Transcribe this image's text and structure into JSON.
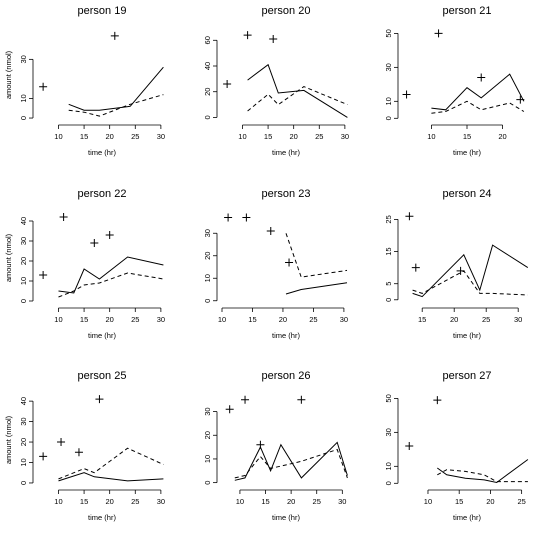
{
  "chart_data": [
    {
      "type": "line",
      "title": "person 19",
      "xlabel": "time (hr)",
      "ylabel": "amount (nmol)",
      "xticks": [
        10,
        15,
        20,
        25,
        30
      ],
      "yticks": [
        0,
        10,
        30
      ],
      "xlim": [
        6,
        31
      ],
      "ylim": [
        -1,
        45
      ],
      "series": [
        {
          "style": "solid",
          "x": [
            12,
            15,
            18,
            24,
            30.5
          ],
          "y": [
            7,
            4,
            4,
            6,
            26
          ]
        },
        {
          "style": "dashed",
          "x": [
            12,
            15,
            18,
            24,
            30.5
          ],
          "y": [
            4,
            3,
            1,
            7,
            12
          ]
        },
        {
          "style": "points",
          "x": [
            7,
            21
          ],
          "y": [
            16,
            42
          ]
        }
      ]
    },
    {
      "type": "line",
      "title": "person 20",
      "xlabel": "time (hr)",
      "ylabel": "",
      "xticks": [
        10,
        15,
        20,
        25,
        30
      ],
      "yticks": [
        0,
        20,
        40,
        60
      ],
      "xlim": [
        6,
        31
      ],
      "ylim": [
        -2,
        68
      ],
      "series": [
        {
          "style": "solid",
          "x": [
            11,
            15,
            17,
            22,
            30.5
          ],
          "y": [
            29,
            41,
            19,
            21,
            0
          ]
        },
        {
          "style": "dashed",
          "x": [
            11,
            15,
            17,
            22,
            30.5
          ],
          "y": [
            5,
            18,
            10,
            24,
            10
          ]
        },
        {
          "style": "points",
          "x": [
            7,
            11,
            16
          ],
          "y": [
            26,
            64,
            61
          ]
        }
      ]
    },
    {
      "type": "line",
      "title": "person 21",
      "xlabel": "time (hr)",
      "ylabel": "",
      "xticks": [
        10,
        15,
        20
      ],
      "yticks": [
        0,
        10,
        30,
        50
      ],
      "xlim": [
        6,
        24
      ],
      "ylim": [
        -1,
        52
      ],
      "series": [
        {
          "style": "solid",
          "x": [
            10,
            12,
            15,
            17,
            21,
            23
          ],
          "y": [
            6,
            5,
            18,
            12,
            26,
            10
          ]
        },
        {
          "style": "dashed",
          "x": [
            10,
            12,
            15,
            17,
            21,
            23
          ],
          "y": [
            3,
            4,
            10,
            5,
            9,
            4
          ]
        },
        {
          "style": "points",
          "x": [
            6.5,
            11,
            17,
            22.5
          ],
          "y": [
            14,
            50,
            24,
            11
          ]
        }
      ]
    },
    {
      "type": "line",
      "title": "person 22",
      "xlabel": "time (hr)",
      "ylabel": "amount (nmol)",
      "xticks": [
        10,
        15,
        20,
        25,
        30
      ],
      "yticks": [
        0,
        10,
        20,
        30,
        40
      ],
      "xlim": [
        6,
        31
      ],
      "ylim": [
        -1,
        44
      ],
      "series": [
        {
          "style": "solid",
          "x": [
            10,
            13,
            15,
            18,
            23.5,
            30.5
          ],
          "y": [
            5,
            4,
            16,
            11,
            22,
            18
          ]
        },
        {
          "style": "dashed",
          "x": [
            10,
            13,
            15,
            18,
            23.5,
            30.5
          ],
          "y": [
            2,
            5,
            8,
            9,
            14,
            11
          ]
        },
        {
          "style": "points",
          "x": [
            7,
            11,
            17,
            20
          ],
          "y": [
            13,
            42,
            29,
            33
          ]
        }
      ]
    },
    {
      "type": "line",
      "title": "person 23",
      "xlabel": "time (hr)",
      "ylabel": "",
      "xticks": [
        10,
        15,
        20,
        25,
        30
      ],
      "yticks": [
        0,
        10,
        20,
        30
      ],
      "xlim": [
        10,
        31
      ],
      "ylim": [
        -1,
        39
      ],
      "series": [
        {
          "style": "solid",
          "x": [
            20.5,
            23,
            30.5
          ],
          "y": [
            3,
            5,
            8
          ]
        },
        {
          "style": "dashed",
          "x": [
            20.5,
            23,
            30.5
          ],
          "y": [
            30,
            10.5,
            13.5
          ]
        },
        {
          "style": "points",
          "x": [
            11,
            14,
            18,
            21
          ],
          "y": [
            37,
            37,
            31,
            17
          ]
        }
      ]
    },
    {
      "type": "line",
      "title": "person 24",
      "xlabel": "time (hr)",
      "ylabel": "",
      "xticks": [
        15,
        20,
        25,
        30
      ],
      "yticks": [
        0,
        5,
        15,
        25
      ],
      "xlim": [
        12,
        32
      ],
      "ylim": [
        -1,
        27
      ],
      "series": [
        {
          "style": "solid",
          "x": [
            13.5,
            15,
            21.5,
            24,
            26,
            31.5
          ],
          "y": [
            2,
            1,
            14,
            3,
            17,
            10
          ]
        },
        {
          "style": "dashed",
          "x": [
            13.5,
            15,
            21.5,
            24,
            26,
            31.5
          ],
          "y": [
            3,
            2,
            9,
            2,
            2,
            1.5
          ]
        },
        {
          "style": "points",
          "x": [
            13,
            14,
            21
          ],
          "y": [
            26,
            10,
            9
          ]
        }
      ]
    },
    {
      "type": "line",
      "title": "person 25",
      "xlabel": "time (hr)",
      "ylabel": "amount (nmol)",
      "xticks": [
        10,
        15,
        20,
        25,
        30
      ],
      "yticks": [
        0,
        10,
        20,
        30,
        40
      ],
      "xlim": [
        6,
        31
      ],
      "ylim": [
        -1,
        43
      ],
      "series": [
        {
          "style": "solid",
          "x": [
            10,
            15,
            17,
            23.5,
            30.5
          ],
          "y": [
            1,
            5,
            3,
            1,
            2
          ]
        },
        {
          "style": "dashed",
          "x": [
            10,
            15,
            17,
            23.5,
            30.5
          ],
          "y": [
            2,
            7,
            5,
            17,
            9
          ]
        },
        {
          "style": "points",
          "x": [
            7,
            10.5,
            14,
            18
          ],
          "y": [
            13,
            20,
            15,
            41
          ]
        }
      ]
    },
    {
      "type": "line",
      "title": "person 26",
      "xlabel": "time (hr)",
      "ylabel": "",
      "xticks": [
        10,
        15,
        20,
        25,
        30
      ],
      "yticks": [
        0,
        10,
        20,
        30
      ],
      "xlim": [
        6.5,
        31.5
      ],
      "ylim": [
        -1,
        37
      ],
      "series": [
        {
          "style": "solid",
          "x": [
            9,
            11,
            14,
            16,
            18,
            22,
            29,
            31
          ],
          "y": [
            1,
            2,
            15,
            5,
            16,
            2,
            17,
            3
          ]
        },
        {
          "style": "dashed",
          "x": [
            9,
            11,
            14,
            16,
            18,
            22,
            29,
            31
          ],
          "y": [
            2,
            3,
            11,
            6,
            7,
            9,
            14,
            2
          ]
        },
        {
          "style": "points",
          "x": [
            8,
            11,
            14,
            22
          ],
          "y": [
            31,
            35,
            16,
            35
          ]
        }
      ]
    },
    {
      "type": "line",
      "title": "person 27",
      "xlabel": "time (hr)",
      "ylabel": "",
      "xticks": [
        10,
        15,
        20,
        25
      ],
      "yticks": [
        0,
        10,
        30,
        50
      ],
      "xlim": [
        6,
        26.5
      ],
      "ylim": [
        -1,
        52
      ],
      "series": [
        {
          "style": "solid",
          "x": [
            11.5,
            13,
            16,
            19,
            21,
            26
          ],
          "y": [
            9,
            5,
            3,
            2,
            0.5,
            14
          ]
        },
        {
          "style": "dashed",
          "x": [
            11.5,
            13,
            16,
            19,
            21,
            26
          ],
          "y": [
            5,
            8,
            7,
            5,
            1,
            1
          ]
        },
        {
          "style": "points",
          "x": [
            7,
            11.5
          ],
          "y": [
            22,
            49
          ]
        }
      ]
    }
  ]
}
